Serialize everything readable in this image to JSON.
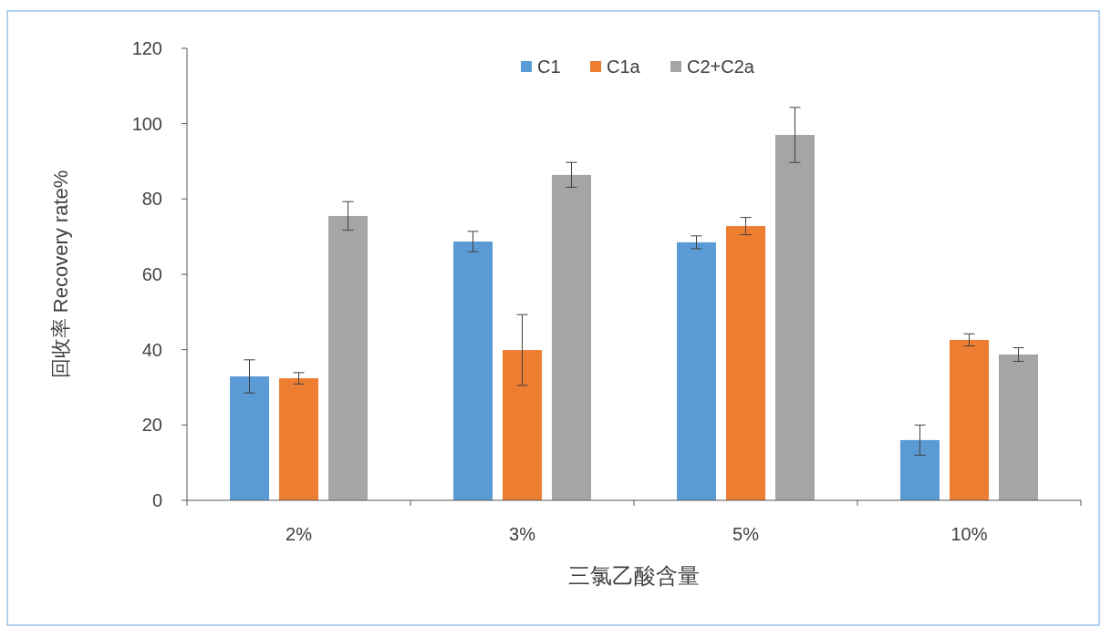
{
  "chart_data": {
    "type": "bar",
    "xlabel": "三氯乙酸含量",
    "ylabel": "回收率 Recovery rate%",
    "categories": [
      "2%",
      "3%",
      "5%",
      "10%"
    ],
    "series": [
      {
        "name": "C1",
        "color": "#5b9bd5",
        "values": [
          32.9,
          68.7,
          68.5,
          16.0
        ],
        "errors": [
          4.4,
          2.7,
          1.7,
          4.0
        ]
      },
      {
        "name": "C1a",
        "color": "#ed7d31",
        "values": [
          32.4,
          39.9,
          72.8,
          42.6
        ],
        "errors": [
          1.5,
          9.4,
          2.3,
          1.6
        ]
      },
      {
        "name": "C2+C2a",
        "color": "#a5a5a5",
        "values": [
          75.5,
          86.4,
          97.0,
          38.7
        ],
        "errors": [
          3.8,
          3.3,
          7.3,
          1.8
        ]
      }
    ],
    "ylim": [
      0,
      120
    ],
    "yticks": [
      0,
      20,
      40,
      60,
      80,
      100,
      120
    ],
    "legend": "top"
  }
}
